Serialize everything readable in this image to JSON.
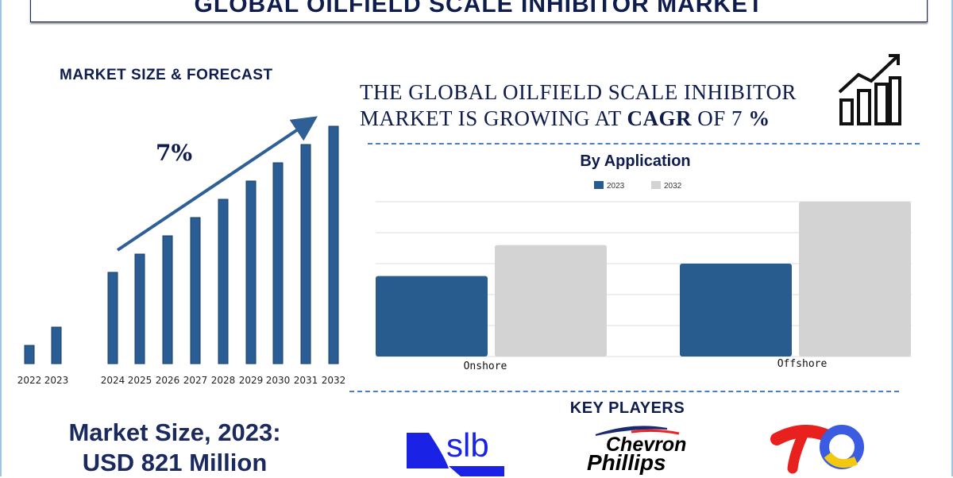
{
  "title": "GLOBAL OILFIELD SCALE INHIBITOR MARKET",
  "forecast_heading": "MARKET SIZE & FORECAST",
  "cagr_label": "7%",
  "growth_text_1": "THE GLOBAL  OILFIELD SCALE INHIBITOR",
  "growth_text_2a": "MARKET IS GROWING AT ",
  "growth_text_2b": "CAGR",
  "growth_text_2c": " OF 7 ",
  "growth_text_2d": "%",
  "market_size_line1": "Market Size, 2023:",
  "market_size_line2": "USD 821 Million",
  "key_players_title": "KEY PLAYERS",
  "key_players": [
    "slb",
    "Chevron Phillips Chemical",
    "TotalEnergies"
  ],
  "colors": {
    "bar": "#2a5d94",
    "bar2023": "#285b8e",
    "bar2032": "#d3d3d3",
    "navy": "#0f1d4e"
  },
  "chart_data": [
    {
      "type": "bar",
      "title": "",
      "categories": [
        "2022",
        "2023",
        "2024",
        "2025",
        "2026",
        "2027",
        "2028",
        "2029",
        "2030",
        "2031",
        "2032"
      ],
      "values": [
        1,
        2,
        5,
        6,
        7,
        8,
        9,
        10,
        11,
        12,
        13
      ],
      "annotation": "7%",
      "grid": false
    },
    {
      "type": "bar",
      "title": "By Application",
      "categories": [
        "Onshore",
        "Offshore"
      ],
      "series": [
        {
          "name": "2023",
          "values": [
            2.6,
            3.0
          ]
        },
        {
          "name": "2032",
          "values": [
            3.6,
            5.0
          ]
        }
      ],
      "ylim": [
        0,
        5
      ],
      "grid": true,
      "legend": "top"
    }
  ]
}
